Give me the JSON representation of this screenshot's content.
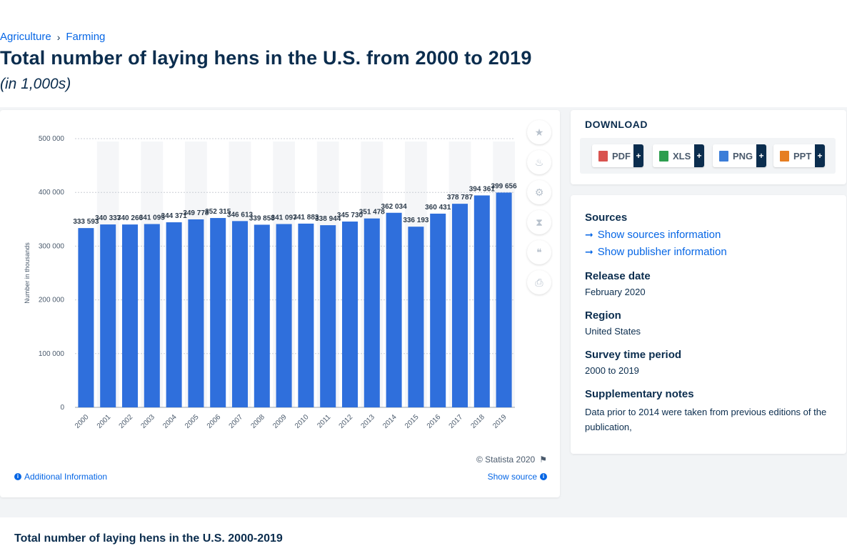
{
  "breadcrumb": {
    "item1": "Agriculture",
    "separator": "›",
    "item2": "Farming"
  },
  "page": {
    "title": "Total number of laying hens in the U.S. from 2000 to 2019",
    "subtitle": "(in 1,000s)"
  },
  "chart": {
    "copyright": "© Statista 2020",
    "additional_info": "Additional Information",
    "show_source": "Show source"
  },
  "download": {
    "title": "DOWNLOAD",
    "buttons": [
      {
        "label": "PDF",
        "plus": "+",
        "color": "#d9534f"
      },
      {
        "label": "XLS",
        "plus": "+",
        "color": "#2e9e4f"
      },
      {
        "label": "PNG",
        "plus": "+",
        "color": "#3b7dd8"
      },
      {
        "label": "PPT",
        "plus": "+",
        "color": "#e67e22"
      }
    ]
  },
  "sources": {
    "heading": "Sources",
    "show_sources": "Show sources information",
    "show_publisher": "Show publisher information",
    "release_label": "Release date",
    "release_value": "February 2020",
    "region_label": "Region",
    "region_value": "United States",
    "survey_label": "Survey time period",
    "survey_value": "2000 to 2019",
    "notes_label": "Supplementary notes",
    "notes_value": "Data prior to 2014 were taken from previous editions of the publication,"
  },
  "bottom": {
    "title": "Total number of laying hens in the U.S. 2000-2019"
  },
  "colors": {
    "bar": "#2f6fdc",
    "accent": "#0666e5",
    "navy": "#0b2d4e"
  },
  "chart_data": {
    "type": "bar",
    "categories": [
      "2000",
      "2001",
      "2002",
      "2003",
      "2004",
      "2005",
      "2006",
      "2007",
      "2008",
      "2009",
      "2010",
      "2011",
      "2012",
      "2013",
      "2014",
      "2015",
      "2016",
      "2017",
      "2018",
      "2019"
    ],
    "values": [
      333593,
      340337,
      340266,
      341095,
      344371,
      349778,
      352315,
      346613,
      339858,
      341097,
      341883,
      338944,
      345730,
      351478,
      362034,
      336193,
      360431,
      378787,
      394361,
      399656
    ],
    "value_labels": [
      "333 593",
      "340 337",
      "340 266",
      "341 095",
      "344 371",
      "349 778",
      "352 315",
      "346 613",
      "339 858",
      "341 097",
      "341 883",
      "338 944",
      "345 730",
      "351 478",
      "362 034",
      "336 193",
      "360 431",
      "378 787",
      "394 361",
      "399 656"
    ],
    "ylabel": "Number in thousands",
    "xlabel": "",
    "title": "",
    "ylim": [
      0,
      500000
    ],
    "yticks": [
      0,
      100000,
      200000,
      300000,
      400000,
      500000
    ],
    "ytick_labels": [
      "0",
      "100 000",
      "200 000",
      "300 000",
      "400 000",
      "500 000"
    ],
    "grid": true
  }
}
